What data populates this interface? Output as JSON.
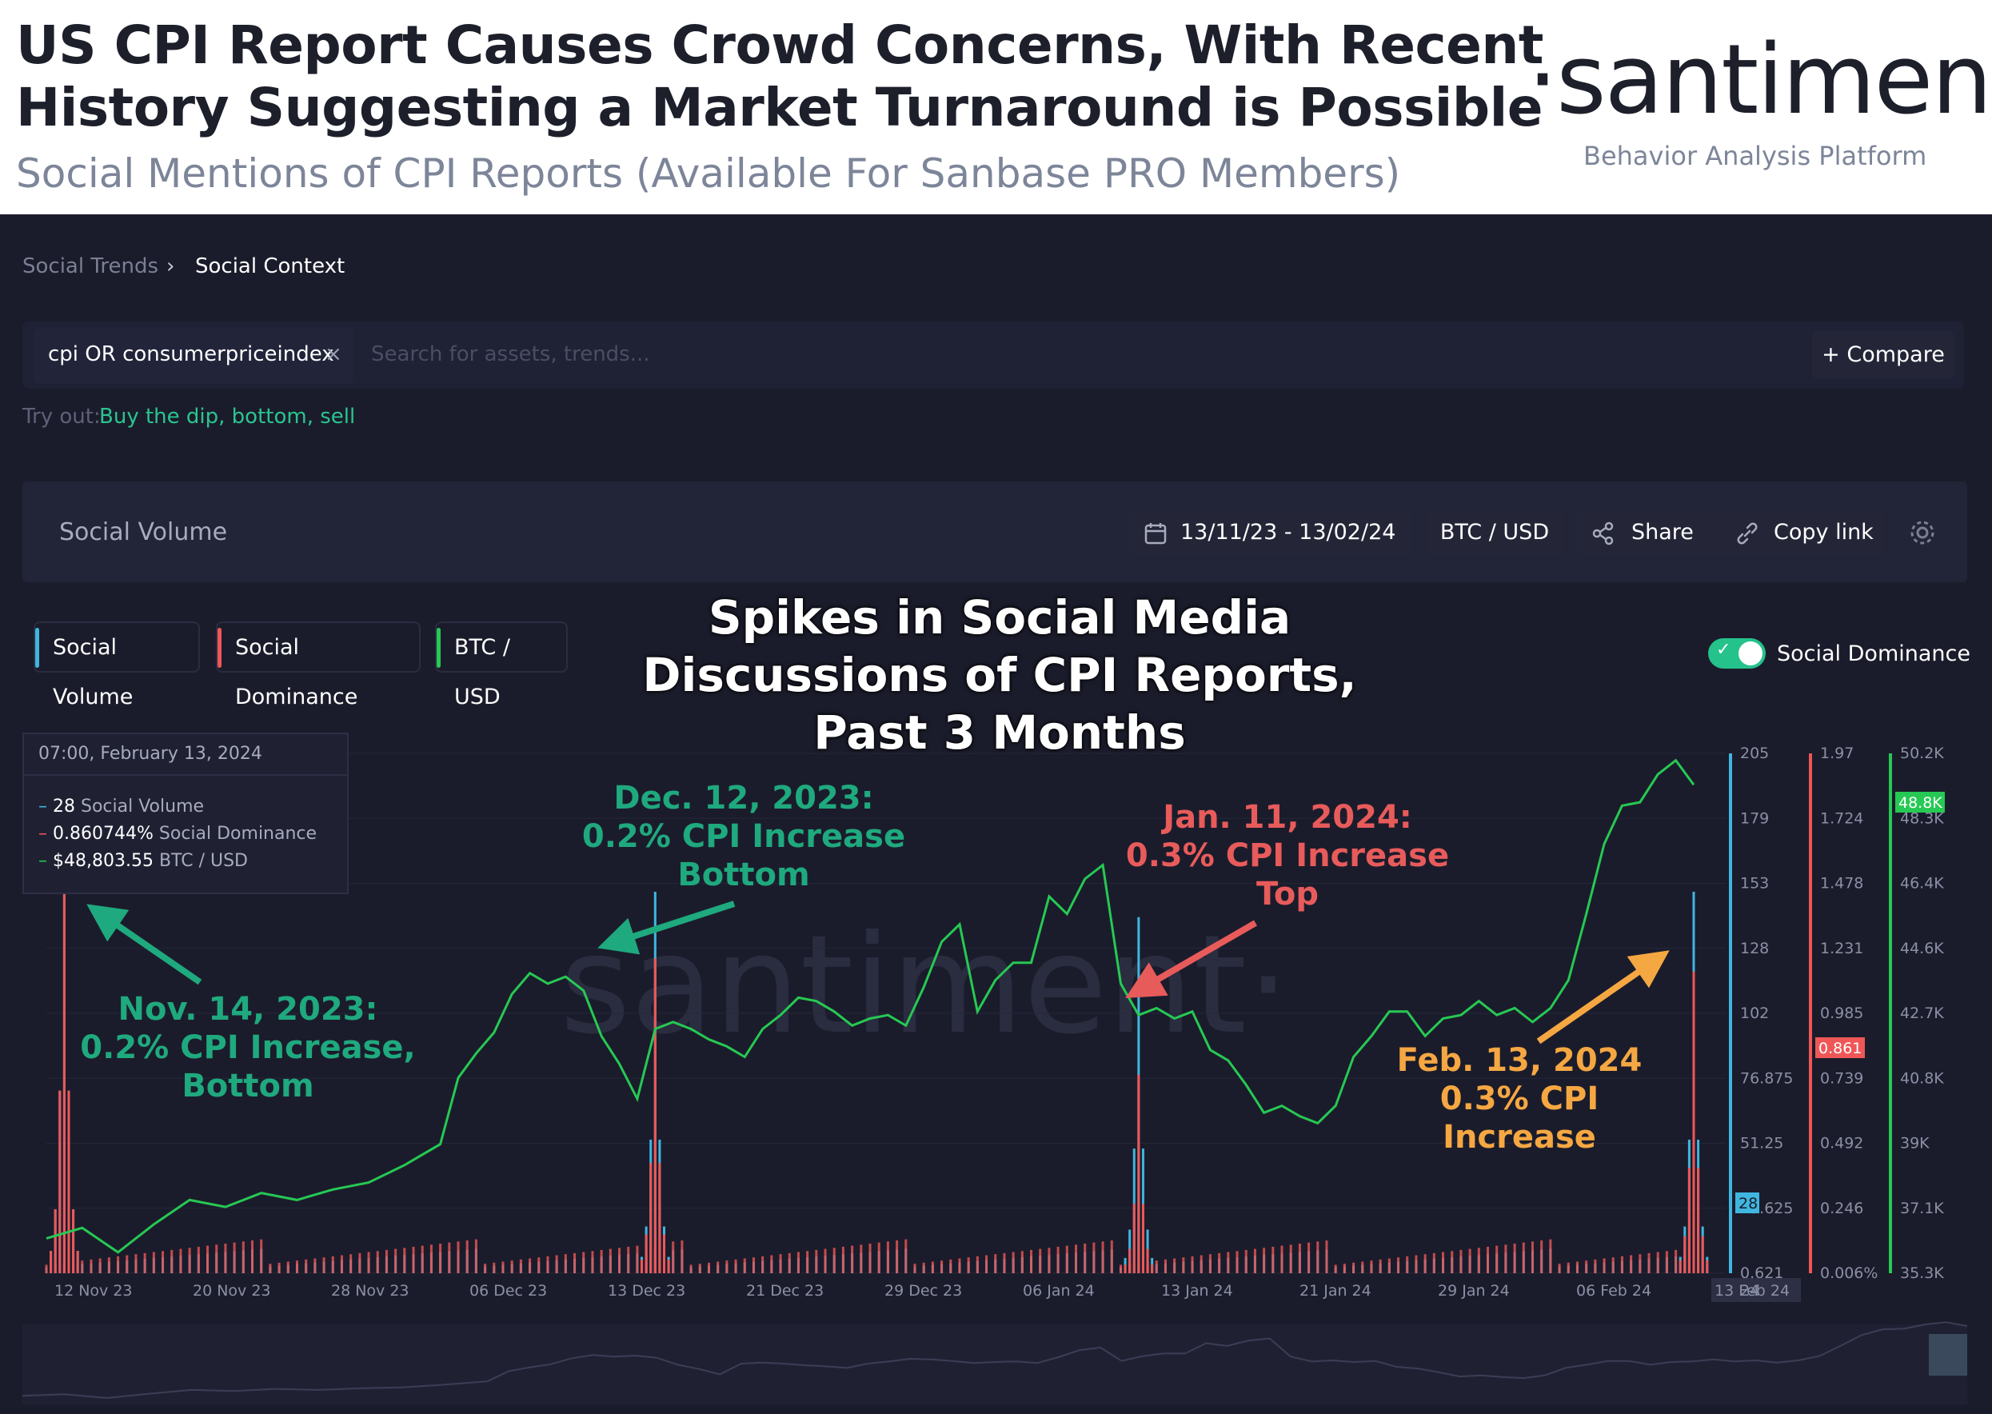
{
  "header": {
    "title": "US CPI Report Causes Crowd Concerns, With Recent\nHistory Suggesting a Market Turnaround is Possible",
    "subtitle": "Social Mentions of CPI Reports (Available For Sanbase PRO Members)",
    "logo": "·santiment·",
    "logo_tagline": "Behavior Analysis Platform"
  },
  "breadcrumb": {
    "parent": "Social Trends",
    "separator": "›",
    "current": "Social Context"
  },
  "search": {
    "chip": "cpi OR consumerpriceindex",
    "chip_close": "×",
    "placeholder": "Search for assets, trends...",
    "compare": "+ Compare"
  },
  "tryout": {
    "label": "Try out:",
    "links": "Buy the dip, bottom, sell"
  },
  "panel": {
    "title": "Social Volume",
    "date_range": "13/11/23 - 13/02/24",
    "pair": "BTC / USD",
    "share": "Share",
    "copy": "Copy link"
  },
  "legend": {
    "social_volume": "Social Volume",
    "social_dominance": "Social Dominance",
    "btc_usd": "BTC / USD",
    "toggle_label": "Social Dominance"
  },
  "tooltip": {
    "date": "07:00, February 13, 2024",
    "sv_value": "28",
    "sv_label": "Social Volume",
    "sd_value": "0.860744%",
    "sd_label": "Social Dominance",
    "btc_value": "$48,803.55",
    "btc_label": "BTC / USD"
  },
  "annotations": {
    "headline": "Spikes in Social Media\nDiscussions of CPI Reports,\nPast 3 Months",
    "nov": "Nov. 14, 2023:\n0.2% CPI Increase,\nBottom",
    "dec": "Dec. 12, 2023:\n0.2% CPI Increase\nBottom",
    "jan": "Jan. 11, 2024:\n0.3% CPI Increase\nTop",
    "feb": "Feb. 13, 2024\n0.3% CPI Increase"
  },
  "colors": {
    "volume": "#3fb6e0",
    "dominance": "#ef5757",
    "btc": "#26c953",
    "green_text": "#1fa97e",
    "red_text": "#e85b5b",
    "orange_text": "#f5a742",
    "bg": "#1b1c2b"
  },
  "chart_data": {
    "type": "line",
    "x_ticks": [
      "12 Nov 23",
      "20 Nov 23",
      "28 Nov 23",
      "06 Dec 23",
      "13 Dec 23",
      "21 Dec 23",
      "29 Dec 23",
      "06 Jan 24",
      "13 Jan 24",
      "21 Jan 24",
      "29 Jan 24",
      "06 Feb 24",
      "13 Feb 24"
    ],
    "x_tail": "24",
    "y_volume": {
      "ticks": [
        "205",
        "179",
        "153",
        "128",
        "102",
        "76.875",
        "51.25",
        "25.625",
        "0.621"
      ],
      "ylim": [
        0.621,
        205
      ],
      "current": "28"
    },
    "y_dominance": {
      "ticks": [
        "1.97",
        "1.724",
        "1.478",
        "1.231",
        "0.985",
        "0.739",
        "0.492",
        "0.246",
        "0.006%"
      ],
      "ylim": [
        0.006,
        1.97
      ],
      "current": "0.861"
    },
    "y_btc": {
      "ticks": [
        "50.2K",
        "48.3K",
        "46.4K",
        "44.6K",
        "42.7K",
        "40.8K",
        "39K",
        "37.1K",
        "35.3K"
      ],
      "ylim": [
        35300,
        50200
      ],
      "current": "48.8K"
    },
    "series": [
      {
        "name": "BTC / USD",
        "points": [
          [
            0,
            36300
          ],
          [
            2,
            36600
          ],
          [
            4,
            35900
          ],
          [
            6,
            36700
          ],
          [
            8,
            37400
          ],
          [
            10,
            37200
          ],
          [
            12,
            37600
          ],
          [
            14,
            37400
          ],
          [
            16,
            37700
          ],
          [
            18,
            37900
          ],
          [
            20,
            38400
          ],
          [
            22,
            39000
          ],
          [
            23,
            40900
          ],
          [
            24,
            41600
          ],
          [
            25,
            42200
          ],
          [
            26,
            43300
          ],
          [
            27,
            43900
          ],
          [
            28,
            43600
          ],
          [
            29,
            43800
          ],
          [
            30,
            43400
          ],
          [
            31,
            42100
          ],
          [
            32,
            41300
          ],
          [
            33,
            40300
          ],
          [
            34,
            42300
          ],
          [
            35,
            42500
          ],
          [
            36,
            42300
          ],
          [
            37,
            42000
          ],
          [
            38,
            41800
          ],
          [
            39,
            41500
          ],
          [
            40,
            42300
          ],
          [
            41,
            42700
          ],
          [
            42,
            43200
          ],
          [
            43,
            43100
          ],
          [
            44,
            42800
          ],
          [
            45,
            42400
          ],
          [
            46,
            42600
          ],
          [
            47,
            42700
          ],
          [
            48,
            42400
          ],
          [
            49,
            43500
          ],
          [
            50,
            44800
          ],
          [
            51,
            45300
          ],
          [
            52,
            42800
          ],
          [
            53,
            43700
          ],
          [
            54,
            44200
          ],
          [
            55,
            44200
          ],
          [
            56,
            46100
          ],
          [
            57,
            45600
          ],
          [
            58,
            46600
          ],
          [
            59,
            47000
          ],
          [
            60,
            43600
          ],
          [
            61,
            42700
          ],
          [
            62,
            42900
          ],
          [
            63,
            42600
          ],
          [
            64,
            42800
          ],
          [
            65,
            41700
          ],
          [
            66,
            41400
          ],
          [
            67,
            40700
          ],
          [
            68,
            39900
          ],
          [
            69,
            40100
          ],
          [
            70,
            39800
          ],
          [
            71,
            39600
          ],
          [
            72,
            40100
          ],
          [
            73,
            41500
          ],
          [
            74,
            42100
          ],
          [
            75,
            42800
          ],
          [
            76,
            42800
          ],
          [
            77,
            42100
          ],
          [
            78,
            42600
          ],
          [
            79,
            42700
          ],
          [
            80,
            43100
          ],
          [
            81,
            42700
          ],
          [
            82,
            42900
          ],
          [
            83,
            42500
          ],
          [
            84,
            42900
          ],
          [
            85,
            43700
          ],
          [
            86,
            45600
          ],
          [
            87,
            47600
          ],
          [
            88,
            48700
          ],
          [
            89,
            48800
          ],
          [
            90,
            49600
          ],
          [
            91,
            50000
          ],
          [
            92,
            49300
          ]
        ]
      },
      {
        "name": "Social Volume",
        "spikes": [
          [
            1,
            205
          ],
          [
            34,
            150
          ],
          [
            61,
            140
          ],
          [
            92,
            150
          ]
        ],
        "baseline": 6
      },
      {
        "name": "Social Dominance",
        "spikes": [
          [
            1,
            1.97
          ],
          [
            34,
            1.19
          ],
          [
            61,
            0.75
          ],
          [
            92,
            1.14
          ]
        ],
        "baseline": 0.08
      }
    ],
    "x_range_days": [
      0,
      92
    ]
  }
}
